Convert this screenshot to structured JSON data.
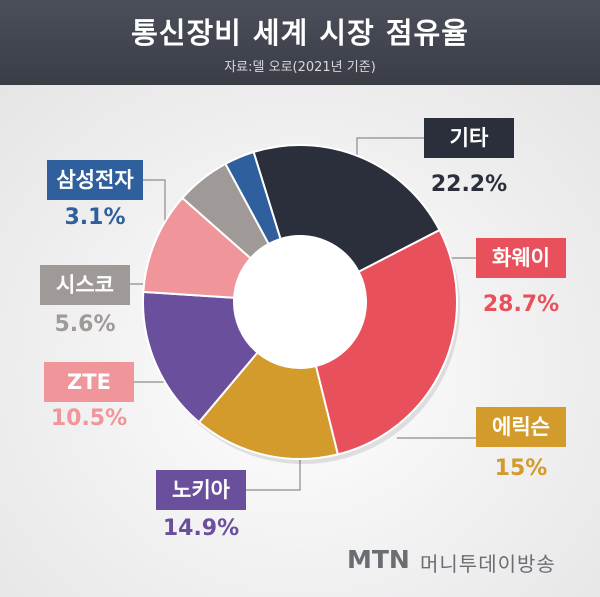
{
  "header": {
    "title": "통신장비 세계 시장 점유율",
    "source": "자료:델 오로(2021년 기준)"
  },
  "chart_data": {
    "type": "pie",
    "variant": "donut",
    "title": "통신장비 세계 시장 점유율",
    "subtitle": "자료:델 오로(2021년 기준)",
    "unit": "%",
    "slices": [
      {
        "label": "기타",
        "value": 22.2,
        "display": "22.2%",
        "color": "#2b2f3c",
        "label_color": "#2b2f3c"
      },
      {
        "label": "화웨이",
        "value": 28.7,
        "display": "28.7%",
        "color": "#e8505b",
        "label_color": "#e8505b"
      },
      {
        "label": "에릭슨",
        "value": 15,
        "display": "15%",
        "color": "#d39a2c",
        "label_color": "#d39a2c"
      },
      {
        "label": "노키아",
        "value": 14.9,
        "display": "14.9%",
        "color": "#6a4f9c",
        "label_color": "#6a4f9c"
      },
      {
        "label": "ZTE",
        "value": 10.5,
        "display": "10.5%",
        "color": "#f0959a",
        "label_color": "#f0959a"
      },
      {
        "label": "시스코",
        "value": 5.6,
        "display": "5.6%",
        "color": "#9f9a98",
        "label_color": "#9f9a98"
      },
      {
        "label": "삼성전자",
        "value": 3.1,
        "display": "3.1%",
        "color": "#2f5f9c",
        "label_color": "#2f5f9c"
      }
    ]
  },
  "branding": {
    "logo": "MTN",
    "name": "머니투데이방송"
  }
}
